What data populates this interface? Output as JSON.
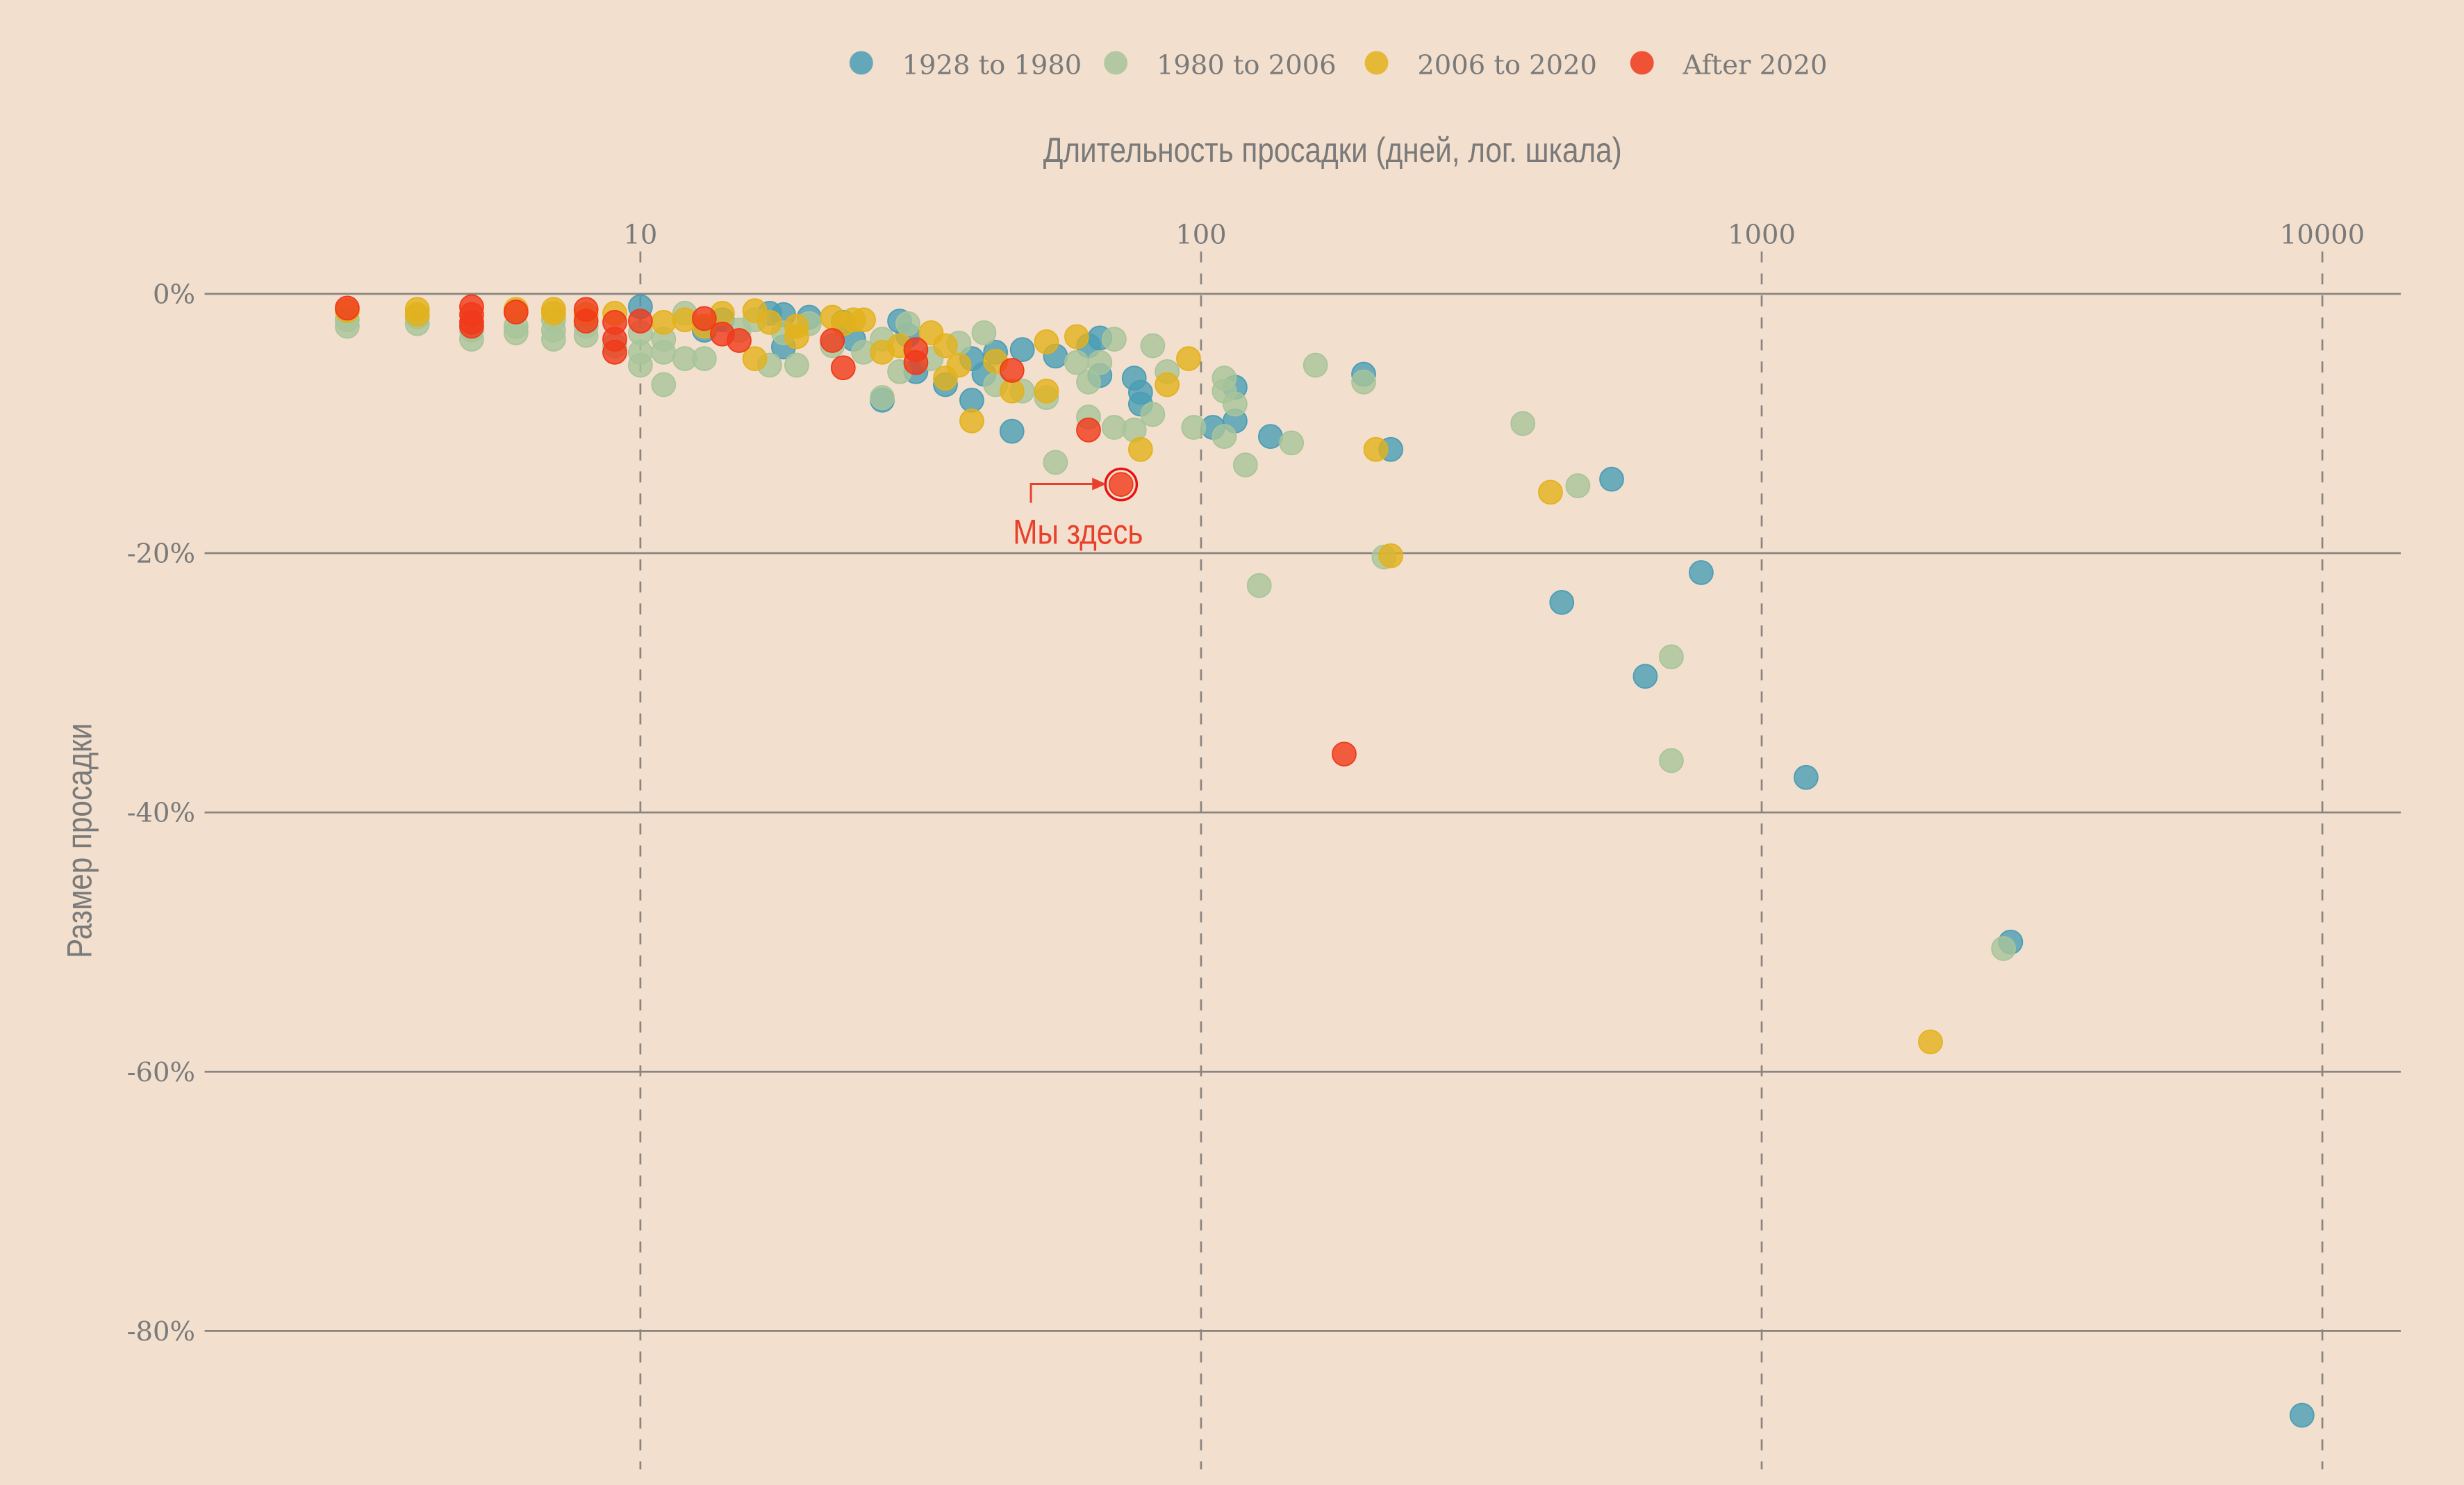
{
  "chart_data": {
    "type": "scatter",
    "xlabel": "Длительность просадки (дней, лог. шкала)",
    "ylabel": "Размер просадки",
    "xscale": "log",
    "xlim": [
      1.67,
      13800
    ],
    "ylim": [
      -90.7,
      0
    ],
    "xticks": [
      10,
      100,
      1000,
      10000
    ],
    "xtick_labels": [
      "10",
      "100",
      "1000",
      "10000"
    ],
    "yticks": [
      0,
      -20,
      -40,
      -60,
      -80
    ],
    "ytick_labels": [
      "0%",
      "-20%",
      "-40%",
      "-60%",
      "-80%"
    ],
    "grid": "y solid, x dashed",
    "legend_position": "top-center",
    "annotation": {
      "text": "Мы здесь",
      "x": 72,
      "y": -14.7
    },
    "series": [
      {
        "name": "1928 to 1980",
        "color": "#4a9db5",
        "points": [
          [
            10,
            -1
          ],
          [
            13,
            -2.8
          ],
          [
            14,
            -2
          ],
          [
            17,
            -1.5
          ],
          [
            18,
            -1.6
          ],
          [
            18,
            -4.1
          ],
          [
            20,
            -1.8
          ],
          [
            23,
            -2.2
          ],
          [
            24,
            -3.5
          ],
          [
            27,
            -8.2
          ],
          [
            29,
            -2.1
          ],
          [
            30,
            -3.2
          ],
          [
            31,
            -6
          ],
          [
            35,
            -7
          ],
          [
            39,
            -8.2
          ],
          [
            39,
            -5
          ],
          [
            41,
            -6.2
          ],
          [
            43,
            -4.5
          ],
          [
            46,
            -10.6
          ],
          [
            48,
            -4.3
          ],
          [
            55,
            -4.8
          ],
          [
            63,
            -4
          ],
          [
            66,
            -3.4
          ],
          [
            66,
            -6.3
          ],
          [
            76,
            -6.5
          ],
          [
            78,
            -8.5
          ],
          [
            78,
            -7.6
          ],
          [
            105,
            -10.3
          ],
          [
            115,
            -9.8
          ],
          [
            115,
            -7.2
          ],
          [
            133,
            -11
          ],
          [
            195,
            -6.2
          ],
          [
            218,
            -12
          ],
          [
            440,
            -23.8
          ],
          [
            540,
            -14.3
          ],
          [
            620,
            -29.5
          ],
          [
            780,
            -21.5
          ],
          [
            1200,
            -37.3
          ],
          [
            2780,
            -50
          ],
          [
            9200,
            -86.5
          ]
        ]
      },
      {
        "name": "1980 to 2006",
        "color": "#a8c49a",
        "points": [
          [
            3,
            -2.5
          ],
          [
            3,
            -2
          ],
          [
            4,
            -2.3
          ],
          [
            4,
            -1.8
          ],
          [
            5,
            -3.5
          ],
          [
            5,
            -2.8
          ],
          [
            6,
            -3
          ],
          [
            6,
            -2.5
          ],
          [
            7,
            -3.5
          ],
          [
            7,
            -2.8
          ],
          [
            7,
            -2
          ],
          [
            8,
            -3.2
          ],
          [
            8,
            -2.5
          ],
          [
            9,
            -4
          ],
          [
            10,
            -3
          ],
          [
            10,
            -4.5
          ],
          [
            10,
            -5.5
          ],
          [
            11,
            -7
          ],
          [
            11,
            -4.5
          ],
          [
            11,
            -3.5
          ],
          [
            12,
            -1.5
          ],
          [
            12,
            -5
          ],
          [
            13,
            -5
          ],
          [
            15,
            -2.8
          ],
          [
            16,
            -2
          ],
          [
            17,
            -5.5
          ],
          [
            18,
            -3
          ],
          [
            19,
            -5.5
          ],
          [
            20,
            -2.3
          ],
          [
            22,
            -4
          ],
          [
            25,
            -4.5
          ],
          [
            27,
            -8
          ],
          [
            27,
            -3.5
          ],
          [
            29,
            -6
          ],
          [
            30,
            -2.3
          ],
          [
            33,
            -5
          ],
          [
            37,
            -3.8
          ],
          [
            41,
            -3
          ],
          [
            43,
            -7
          ],
          [
            48,
            -7.5
          ],
          [
            53,
            -8
          ],
          [
            55,
            -13
          ],
          [
            60,
            -5.3
          ],
          [
            63,
            -9.5
          ],
          [
            63,
            -6.8
          ],
          [
            66,
            -5.3
          ],
          [
            70,
            -3.5
          ],
          [
            70,
            -10.3
          ],
          [
            76,
            -10.5
          ],
          [
            82,
            -4
          ],
          [
            82,
            -9.3
          ],
          [
            87,
            -6
          ],
          [
            97,
            -10.3
          ],
          [
            110,
            -7.5
          ],
          [
            110,
            -6.5
          ],
          [
            110,
            -11
          ],
          [
            115,
            -8.5
          ],
          [
            120,
            -13.2
          ],
          [
            127,
            -22.5
          ],
          [
            145,
            -11.5
          ],
          [
            160,
            -5.5
          ],
          [
            195,
            -6.8
          ],
          [
            212,
            -20.3
          ],
          [
            375,
            -10
          ],
          [
            470,
            -14.8
          ],
          [
            690,
            -28
          ],
          [
            690,
            -36
          ],
          [
            2700,
            -50.5
          ]
        ]
      },
      {
        "name": "2006 to 2020",
        "color": "#e3b21c",
        "points": [
          [
            3,
            -1.3
          ],
          [
            4,
            -1.2
          ],
          [
            4,
            -1.6
          ],
          [
            6,
            -1.2
          ],
          [
            7,
            -1.2
          ],
          [
            7,
            -1.5
          ],
          [
            8,
            -1.6
          ],
          [
            9,
            -1.5
          ],
          [
            11,
            -2.2
          ],
          [
            12,
            -2
          ],
          [
            13,
            -2.5
          ],
          [
            14,
            -1.5
          ],
          [
            16,
            -1.3
          ],
          [
            16,
            -5
          ],
          [
            17,
            -2.2
          ],
          [
            19,
            -2.5
          ],
          [
            19,
            -3.3
          ],
          [
            22,
            -1.8
          ],
          [
            23,
            -2.3
          ],
          [
            24,
            -2
          ],
          [
            25,
            -2
          ],
          [
            27,
            -4.5
          ],
          [
            29,
            -4
          ],
          [
            33,
            -3
          ],
          [
            35,
            -4
          ],
          [
            35,
            -6.5
          ],
          [
            37,
            -5.5
          ],
          [
            39,
            -9.8
          ],
          [
            43,
            -5.2
          ],
          [
            46,
            -7.5
          ],
          [
            53,
            -3.7
          ],
          [
            53,
            -7.5
          ],
          [
            60,
            -3.3
          ],
          [
            78,
            -12
          ],
          [
            87,
            -7
          ],
          [
            95,
            -5
          ],
          [
            205,
            -12
          ],
          [
            218,
            -20.2
          ],
          [
            420,
            -15.3
          ],
          [
            2000,
            -57.7
          ]
        ]
      },
      {
        "name": "After 2020",
        "color": "#f0391a",
        "points": [
          [
            3,
            -1.1
          ],
          [
            5,
            -1
          ],
          [
            5,
            -1.6
          ],
          [
            5,
            -2.2
          ],
          [
            5,
            -2.5
          ],
          [
            6,
            -1.4
          ],
          [
            8,
            -1.2
          ],
          [
            8,
            -2.1
          ],
          [
            9,
            -2.2
          ],
          [
            9,
            -3.5
          ],
          [
            9,
            -4.5
          ],
          [
            10,
            -2.1
          ],
          [
            13,
            -1.9
          ],
          [
            14,
            -3.1
          ],
          [
            15,
            -3.6
          ],
          [
            22,
            -3.6
          ],
          [
            23,
            -5.7
          ],
          [
            31,
            -4.3
          ],
          [
            31,
            -5.3
          ],
          [
            46,
            -5.9
          ],
          [
            63,
            -10.5
          ],
          [
            180,
            -35.5
          ],
          [
            72,
            -14.7
          ]
        ]
      }
    ]
  }
}
